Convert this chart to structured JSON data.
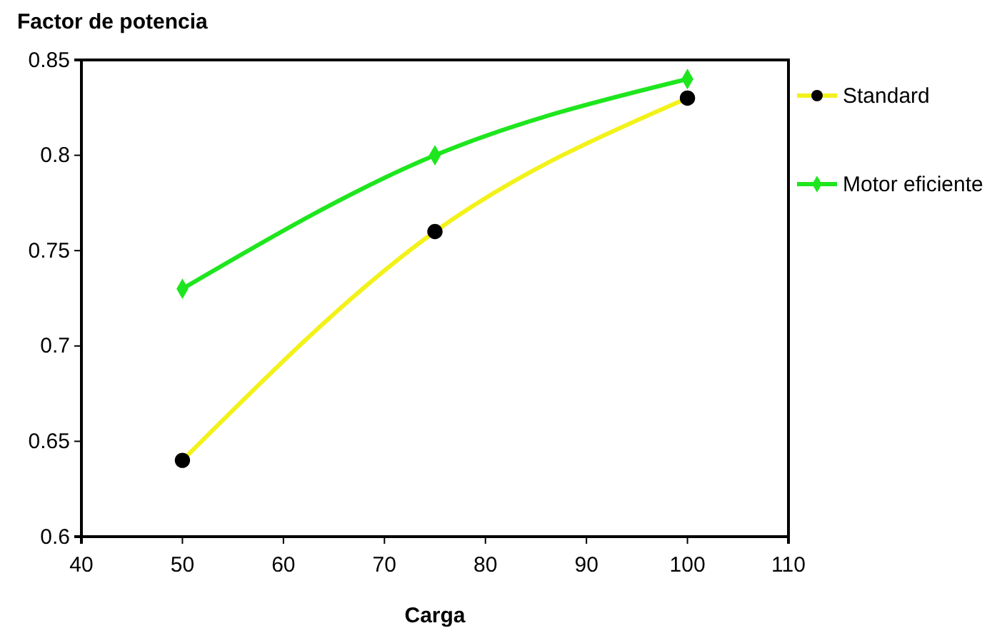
{
  "chart_data": {
    "type": "line",
    "ylabel": "Factor de potencia",
    "xlabel": "Carga",
    "x": [
      50,
      75,
      100
    ],
    "series": [
      {
        "name": "Standard",
        "color": "#f2f21a",
        "values": [
          0.64,
          0.76,
          0.83
        ],
        "marker": "circle"
      },
      {
        "name": "Motor eficiente",
        "color": "#1ee61e",
        "values": [
          0.73,
          0.8,
          0.84
        ],
        "marker": "diamond"
      }
    ],
    "xlim": [
      40,
      110
    ],
    "xticks": [
      40,
      50,
      60,
      70,
      80,
      90,
      100,
      110
    ],
    "ylim": [
      0.6,
      0.85
    ],
    "yticks": [
      0.6,
      0.65,
      0.7,
      0.75,
      0.8,
      0.85
    ],
    "grid": false,
    "legend": "right",
    "line_style": "solid"
  }
}
